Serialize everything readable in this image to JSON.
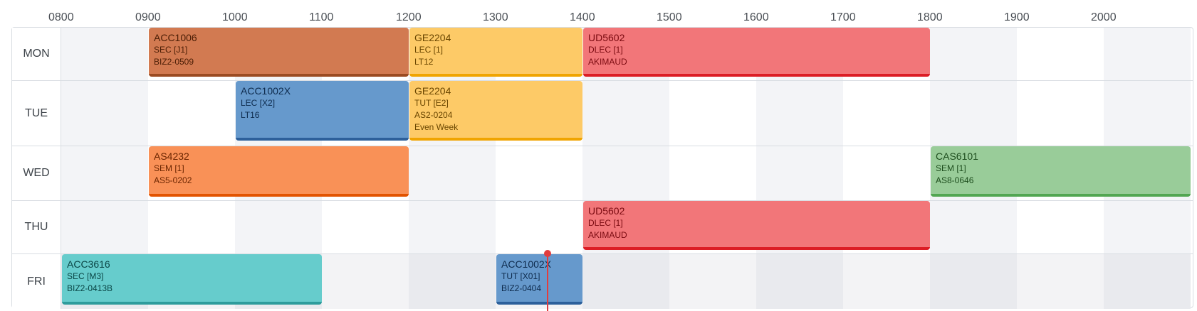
{
  "hours": [
    "0800",
    "0900",
    "1000",
    "1100",
    "1200",
    "1300",
    "1400",
    "1500",
    "1600",
    "1700",
    "1800",
    "1900",
    "2000"
  ],
  "start_hour": 8,
  "end_hour": 21,
  "colors": {
    "stripe_a": "#f3f4f7",
    "stripe_b": "#ffffff",
    "stripe_fri_a": "#e9eaee",
    "stripe_fri_b": "#f3f3f5",
    "brown": {
      "bg": "#d27a51",
      "border": "#9b4b22",
      "text": "#4a1d05"
    },
    "yellow": {
      "bg": "#fdca67",
      "border": "#f0a400",
      "text": "#6a4600"
    },
    "red": {
      "bg": "#f27679",
      "border": "#dc1d25",
      "text": "#7a0a10"
    },
    "blue": {
      "bg": "#6699cc",
      "border": "#2d609b",
      "text": "#0e2b4d"
    },
    "orange": {
      "bg": "#f99157",
      "border": "#e25300",
      "text": "#6b2500"
    },
    "green": {
      "bg": "#99cc99",
      "border": "#52a652",
      "text": "#1d4d1d"
    },
    "teal": {
      "bg": "#66cccc",
      "border": "#2e9c9c",
      "text": "#0a4545"
    },
    "now": "#e23d3d"
  },
  "current_time_hour": 13.6,
  "current_day_index": 4,
  "days": [
    {
      "label": "MON",
      "lessons": [
        {
          "code": "ACC1006",
          "lines": [
            "SEC [J1]",
            "BIZ2-0509"
          ],
          "start": 9,
          "end": 12,
          "color": "brown"
        },
        {
          "code": "GE2204",
          "lines": [
            "LEC [1]",
            "LT12"
          ],
          "start": 12,
          "end": 14,
          "color": "yellow"
        },
        {
          "code": "UD5602",
          "lines": [
            "DLEC [1]",
            "AKIMAUD"
          ],
          "start": 14,
          "end": 18,
          "color": "red"
        }
      ]
    },
    {
      "label": "TUE",
      "lessons": [
        {
          "code": "ACC1002X",
          "lines": [
            "LEC [X2]",
            "LT16"
          ],
          "start": 10,
          "end": 12,
          "color": "blue"
        },
        {
          "code": "GE2204",
          "lines": [
            "TUT [E2]",
            "AS2-0204",
            "Even Week"
          ],
          "start": 12,
          "end": 14,
          "color": "yellow"
        }
      ]
    },
    {
      "label": "WED",
      "lessons": [
        {
          "code": "AS4232",
          "lines": [
            "SEM [1]",
            "AS5-0202"
          ],
          "start": 9,
          "end": 12,
          "color": "orange"
        },
        {
          "code": "CAS6101",
          "lines": [
            "SEM [1]",
            "AS8-0646"
          ],
          "start": 18,
          "end": 21,
          "color": "green"
        }
      ]
    },
    {
      "label": "THU",
      "lessons": [
        {
          "code": "UD5602",
          "lines": [
            "DLEC [1]",
            "AKIMAUD"
          ],
          "start": 14,
          "end": 18,
          "color": "red"
        }
      ]
    },
    {
      "label": "FRI",
      "lessons": [
        {
          "code": "ACC3616",
          "lines": [
            "SEC [M3]",
            "BIZ2-0413B"
          ],
          "start": 8,
          "end": 11,
          "color": "teal"
        },
        {
          "code": "ACC1002X",
          "lines": [
            "TUT [X01]",
            "BIZ2-0404"
          ],
          "start": 13,
          "end": 14,
          "color": "blue"
        }
      ]
    }
  ]
}
